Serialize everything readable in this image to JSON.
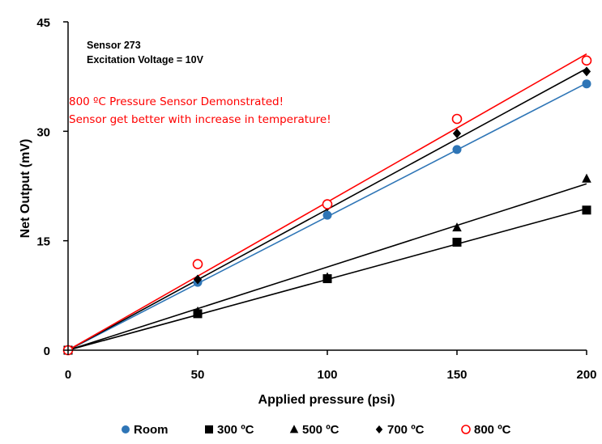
{
  "chart_data": {
    "type": "scatter",
    "xlabel": "Applied pressure (psi)",
    "ylabel": "Net Output (mV)",
    "xlim": [
      0,
      200
    ],
    "ylim": [
      0,
      45
    ],
    "xticks": [
      "0",
      "50",
      "100",
      "150",
      "200"
    ],
    "yticks": [
      "0",
      "15",
      "30",
      "45"
    ],
    "grid": false,
    "legend_position": "bottom",
    "annotations": {
      "sensor": "Sensor 273",
      "excitation": "Excitation Voltage = 10V",
      "red_line1": "800 ºC Pressure Sensor Demonstrated!",
      "red_line2": "Sensor get better with increase in temperature!"
    },
    "x": [
      0,
      50,
      100,
      150,
      200
    ],
    "series": [
      {
        "name": "Room",
        "marker": "filled-circle",
        "color": "#2e75b6",
        "values": [
          0,
          9.3,
          18.5,
          27.5,
          36.5
        ],
        "trend_end": 36.6
      },
      {
        "name": "300 ºC",
        "marker": "filled-square",
        "color": "#000000",
        "values": [
          0,
          5.0,
          9.8,
          14.8,
          19.2
        ],
        "trend_end": 19.4
      },
      {
        "name": "500 ºC",
        "marker": "filled-triangle",
        "color": "#000000",
        "values": [
          0,
          5.3,
          10.0,
          16.8,
          23.5
        ],
        "trend_end": 22.8
      },
      {
        "name": "700 ºC",
        "marker": "filled-diamond",
        "color": "#000000",
        "values": [
          0,
          9.7,
          19.7,
          29.7,
          38.2
        ],
        "trend_end": 38.6
      },
      {
        "name": "800 ºC",
        "marker": "open-circle",
        "color": "#ff0000",
        "values": [
          0,
          11.8,
          20.0,
          31.7,
          39.7
        ],
        "trend_end": 40.6
      }
    ]
  }
}
